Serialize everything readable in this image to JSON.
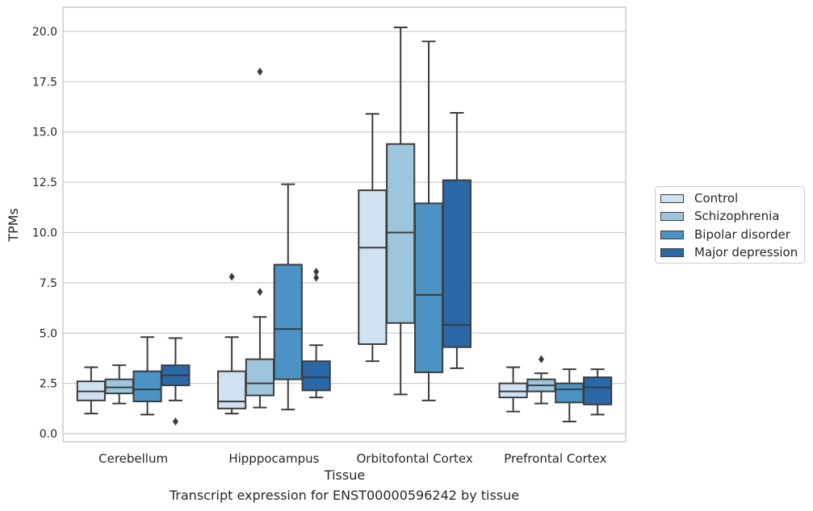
{
  "chart_data": {
    "type": "box",
    "xlabel": "Tissue",
    "ylabel": "TPMs",
    "caption": "Transcript expression for ENST00000596242 by tissue",
    "ylim": [
      -0.4,
      21.2
    ],
    "yticks": [
      "0.0",
      "2.5",
      "5.0",
      "7.5",
      "10.0",
      "12.5",
      "15.0",
      "17.5",
      "20.0"
    ],
    "grid": true,
    "legend_position": "right",
    "categories": [
      "Cerebellum",
      "Hipppocampus",
      "Orbitofontal Cortex",
      "Prefrontal Cortex"
    ],
    "series": [
      {
        "name": "Control",
        "color": "#d0e1f1",
        "boxes": [
          {
            "whislo": 1.0,
            "q1": 1.65,
            "med": 2.1,
            "q3": 2.6,
            "whishi": 3.3,
            "fliers": []
          },
          {
            "whislo": 1.0,
            "q1": 1.25,
            "med": 1.6,
            "q3": 3.1,
            "whishi": 4.8,
            "fliers": [
              7.8
            ]
          },
          {
            "whislo": 3.6,
            "q1": 4.45,
            "med": 9.25,
            "q3": 12.1,
            "whishi": 15.9,
            "fliers": []
          },
          {
            "whislo": 1.1,
            "q1": 1.8,
            "med": 2.1,
            "q3": 2.5,
            "whishi": 3.3,
            "fliers": []
          }
        ]
      },
      {
        "name": "Schizophrenia",
        "color": "#9dc6de",
        "boxes": [
          {
            "whislo": 1.5,
            "q1": 2.0,
            "med": 2.3,
            "q3": 2.7,
            "whishi": 3.4,
            "fliers": []
          },
          {
            "whislo": 1.3,
            "q1": 1.9,
            "med": 2.5,
            "q3": 3.7,
            "whishi": 5.8,
            "fliers": [
              7.05,
              18.0
            ]
          },
          {
            "whislo": 1.95,
            "q1": 5.5,
            "med": 10.0,
            "q3": 14.4,
            "whishi": 20.2,
            "fliers": []
          },
          {
            "whislo": 1.5,
            "q1": 2.1,
            "med": 2.4,
            "q3": 2.7,
            "whishi": 3.0,
            "fliers": [
              3.7
            ]
          }
        ]
      },
      {
        "name": "Bipolar disorder",
        "color": "#4b93c4",
        "boxes": [
          {
            "whislo": 0.95,
            "q1": 1.6,
            "med": 2.2,
            "q3": 3.1,
            "whishi": 4.8,
            "fliers": []
          },
          {
            "whislo": 1.2,
            "q1": 2.7,
            "med": 5.2,
            "q3": 8.4,
            "whishi": 12.4,
            "fliers": []
          },
          {
            "whislo": 1.65,
            "q1": 3.05,
            "med": 6.9,
            "q3": 11.45,
            "whishi": 19.5,
            "fliers": []
          },
          {
            "whislo": 0.6,
            "q1": 1.55,
            "med": 2.2,
            "q3": 2.5,
            "whishi": 3.2,
            "fliers": []
          }
        ]
      },
      {
        "name": "Major depression",
        "color": "#2a68a8",
        "boxes": [
          {
            "whislo": 1.65,
            "q1": 2.4,
            "med": 2.9,
            "q3": 3.4,
            "whishi": 4.75,
            "fliers": [
              0.6
            ]
          },
          {
            "whislo": 1.8,
            "q1": 2.15,
            "med": 2.8,
            "q3": 3.6,
            "whishi": 4.4,
            "fliers": [
              7.75,
              8.05
            ]
          },
          {
            "whislo": 3.25,
            "q1": 4.3,
            "med": 5.4,
            "q3": 12.6,
            "whishi": 15.95,
            "fliers": []
          },
          {
            "whislo": 0.95,
            "q1": 1.45,
            "med": 2.3,
            "q3": 2.8,
            "whishi": 3.2,
            "fliers": []
          }
        ]
      }
    ]
  }
}
